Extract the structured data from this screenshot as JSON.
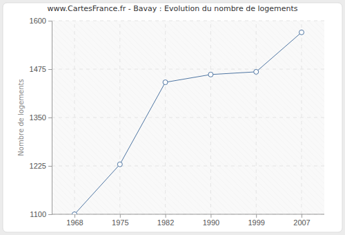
{
  "chart_data": {
    "type": "line",
    "title": "www.CartesFrance.fr - Bavay : Evolution du nombre de logements",
    "y_label": "Nombre de logements",
    "categories": [
      "1968",
      "1975",
      "1982",
      "1990",
      "1999",
      "2007"
    ],
    "values": [
      1100,
      1229,
      1441,
      1461,
      1468,
      1570
    ],
    "color": "#4f76a3",
    "marker": "circle",
    "line_style": "solid",
    "ylim": [
      1100,
      1600
    ],
    "yticks": [
      1100,
      1225,
      1350,
      1475,
      1600
    ],
    "grid": true
  }
}
